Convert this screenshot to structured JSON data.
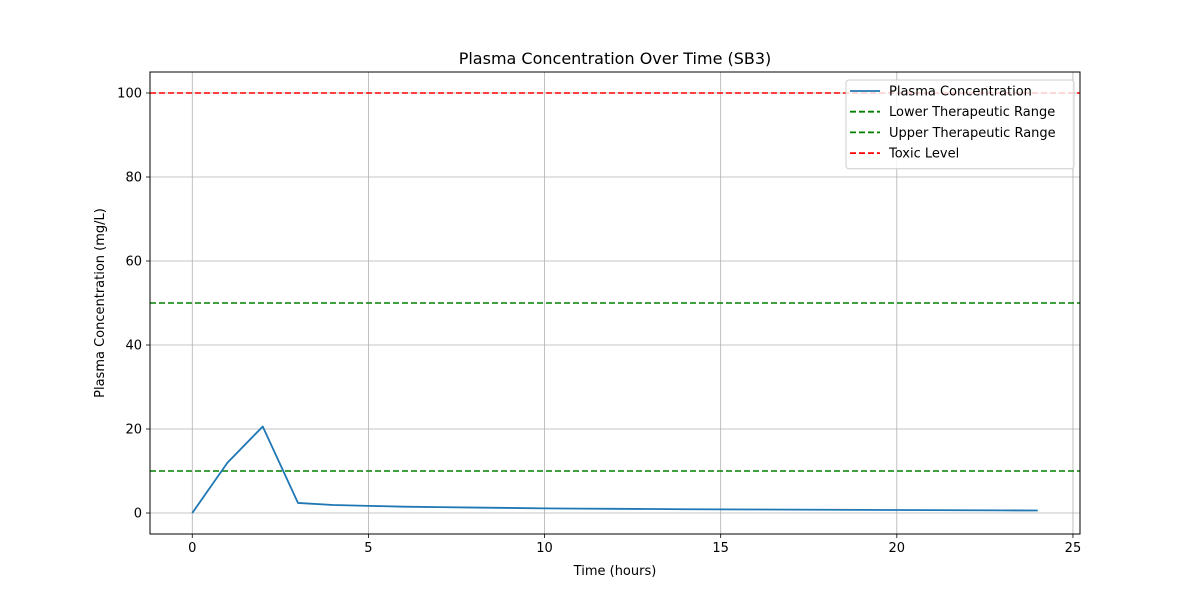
{
  "chart_data": {
    "type": "line",
    "title": "Plasma Concentration Over Time (SB3)",
    "xlabel": "Time (hours)",
    "ylabel": "Plasma Concentration (mg/L)",
    "xlim": [
      -1.2,
      25.2
    ],
    "ylim": [
      -5,
      105
    ],
    "xticks": [
      0,
      5,
      10,
      15,
      20,
      25
    ],
    "yticks": [
      0,
      20,
      40,
      60,
      80,
      100
    ],
    "grid": true,
    "legend_position": "upper right",
    "series": [
      {
        "name": "Plasma Concentration",
        "color": "#1f77b4",
        "style": "solid",
        "x": [
          0,
          1,
          2,
          3,
          4,
          5,
          6,
          7,
          8,
          9,
          10,
          11,
          12,
          13,
          14,
          15,
          16,
          17,
          18,
          19,
          20,
          21,
          22,
          23,
          24
        ],
        "values": [
          0,
          12.0,
          20.6,
          2.4,
          1.9,
          1.7,
          1.5,
          1.4,
          1.3,
          1.2,
          1.1,
          1.05,
          1.0,
          0.95,
          0.9,
          0.87,
          0.83,
          0.8,
          0.77,
          0.74,
          0.71,
          0.68,
          0.65,
          0.62,
          0.6
        ]
      }
    ],
    "reference_lines": [
      {
        "name": "Lower Therapeutic Range",
        "y": 10,
        "color": "#008000",
        "style": "dashed"
      },
      {
        "name": "Upper Therapeutic Range",
        "y": 50,
        "color": "#008000",
        "style": "dashed"
      },
      {
        "name": "Toxic Level",
        "y": 100,
        "color": "#ff0000",
        "style": "dashed"
      }
    ]
  }
}
